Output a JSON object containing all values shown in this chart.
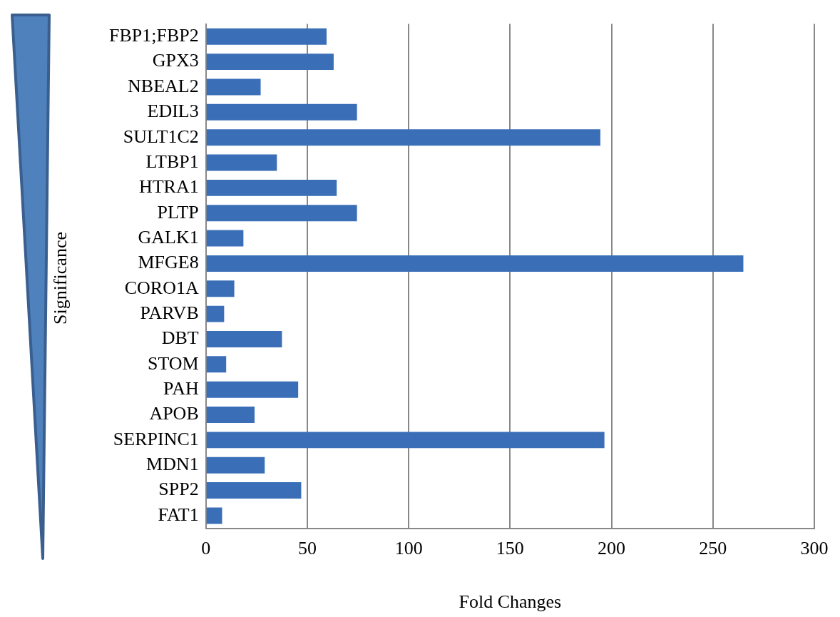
{
  "chart_data": {
    "type": "bar",
    "orientation": "horizontal",
    "xlabel": "Fold Changes",
    "ylabel": "Significance",
    "categories": [
      "FBP1;FBP2",
      "GPX3",
      "NBEAL2",
      "EDIL3",
      "SULT1C2",
      "LTBP1",
      "HTRA1",
      "PLTP",
      "GALK1",
      "MFGE8",
      "CORO1A",
      "PARVB",
      "DBT",
      "STOM",
      "PAH",
      "APOB",
      "SERPINC1",
      "MDN1",
      "SPP2",
      "FAT1"
    ],
    "values": [
      59.5,
      63,
      27,
      74.5,
      194.5,
      35,
      64.5,
      74.5,
      18.5,
      265,
      14,
      9,
      37.5,
      10,
      45.5,
      24,
      196.5,
      29,
      47,
      8
    ],
    "color": "#3a6fb8",
    "xlim": [
      0,
      300
    ],
    "xticks": [
      0,
      50,
      100,
      150,
      200,
      250,
      300
    ],
    "grid": "x"
  }
}
